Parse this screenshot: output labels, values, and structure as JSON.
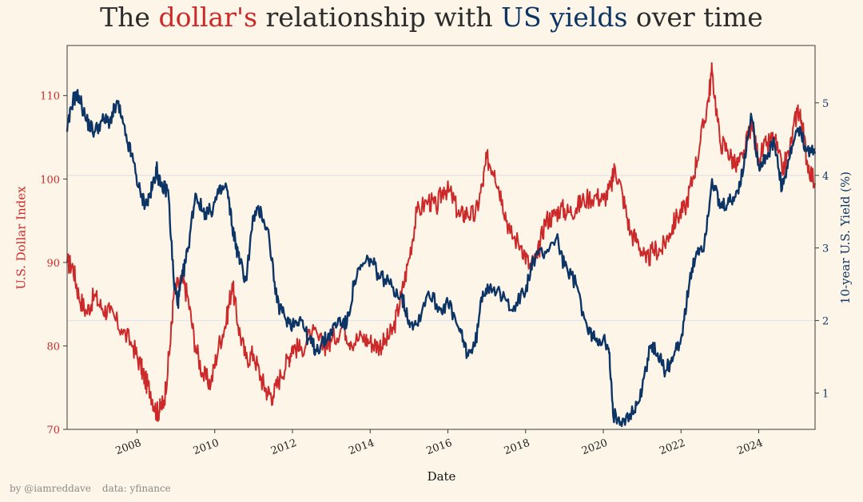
{
  "title": {
    "part1": "The ",
    "highlight1": "dollar's",
    "part2": " relationship with ",
    "highlight2": "US yields",
    "part3": " over time"
  },
  "credit": {
    "author": "by @iamreddave",
    "source": "data: yfinance"
  },
  "colors": {
    "background": "#fdf5e8",
    "dollar": "#cc2a2a",
    "yield": "#0c3566",
    "grid": "#dce0ea"
  },
  "chart_data": {
    "type": "line",
    "xlabel": "Date",
    "ylabel_left": "U.S. Dollar Index",
    "ylabel_right": "10-year U.S. Yield (%)",
    "xlim": [
      2006.2,
      2025.45
    ],
    "ylim_left": [
      70,
      116
    ],
    "ylim_right": [
      0.5,
      5.79
    ],
    "x_ticks": [
      2008,
      2010,
      2012,
      2014,
      2016,
      2018,
      2020,
      2022,
      2024
    ],
    "y_ticks_left": [
      70,
      80,
      90,
      100,
      110
    ],
    "y_ticks_right": [
      1,
      2,
      3,
      4,
      5
    ],
    "grid": "horizontal lines at right-axis ticks 2 and 4",
    "series": [
      {
        "name": "U.S. Dollar Index",
        "axis": "left",
        "x": [
          2006.2,
          2006.35,
          2006.5,
          2006.7,
          2006.9,
          2007.1,
          2007.3,
          2007.6,
          2007.9,
          2008.1,
          2008.2,
          2008.35,
          2008.5,
          2008.6,
          2008.7,
          2008.85,
          2008.95,
          2009.15,
          2009.3,
          2009.5,
          2009.7,
          2009.9,
          2010.1,
          2010.3,
          2010.45,
          2010.6,
          2010.8,
          2011.0,
          2011.2,
          2011.35,
          2011.5,
          2011.7,
          2011.9,
          2012.0,
          2012.2,
          2012.5,
          2012.8,
          2013.0,
          2013.3,
          2013.5,
          2013.8,
          2014.0,
          2014.2,
          2014.4,
          2014.6,
          2014.8,
          2015.0,
          2015.2,
          2015.5,
          2015.7,
          2015.9,
          2016.1,
          2016.3,
          2016.5,
          2016.7,
          2016.9,
          2017.0,
          2017.2,
          2017.4,
          2017.6,
          2017.9,
          2018.1,
          2018.3,
          2018.5,
          2018.7,
          2018.9,
          2019.1,
          2019.3,
          2019.5,
          2019.8,
          2020.0,
          2020.2,
          2020.3,
          2020.5,
          2020.7,
          2020.9,
          2021.1,
          2021.3,
          2021.5,
          2021.7,
          2021.9,
          2022.1,
          2022.3,
          2022.5,
          2022.7,
          2022.8,
          2023.0,
          2023.2,
          2023.4,
          2023.6,
          2023.8,
          2024.0,
          2024.2,
          2024.4,
          2024.6,
          2024.8,
          2025.0,
          2025.1,
          2025.25,
          2025.45
        ],
        "values": [
          90.0,
          89.5,
          86.0,
          84.0,
          86.0,
          84.5,
          84.0,
          82.0,
          80.0,
          77.5,
          76.0,
          74.5,
          72.0,
          72.5,
          73.5,
          80.0,
          86.5,
          88.0,
          86.0,
          80.0,
          76.5,
          75.5,
          80.0,
          83.0,
          87.5,
          82.5,
          78.5,
          79.0,
          76.0,
          74.5,
          74.0,
          76.5,
          78.5,
          80.0,
          79.5,
          81.5,
          80.0,
          80.5,
          82.5,
          80.5,
          81.0,
          80.5,
          80.0,
          80.5,
          82.0,
          86.0,
          90.5,
          96.0,
          97.5,
          96.5,
          99.0,
          98.0,
          95.5,
          96.0,
          95.5,
          99.5,
          102.5,
          101.0,
          97.5,
          93.5,
          92.0,
          89.5,
          90.5,
          95.0,
          95.5,
          96.5,
          96.0,
          96.5,
          97.5,
          98.0,
          97.5,
          99.0,
          101.5,
          98.0,
          93.5,
          92.5,
          90.0,
          91.5,
          91.5,
          93.5,
          95.5,
          96.5,
          100.0,
          104.5,
          109.5,
          113.0,
          104.5,
          103.5,
          101.5,
          102.5,
          106.5,
          102.5,
          104.0,
          105.0,
          101.0,
          103.5,
          108.5,
          107.0,
          102.0,
          99.5
        ]
      },
      {
        "name": "10-year U.S. Yield (%)",
        "axis": "right",
        "x": [
          2006.2,
          2006.35,
          2006.5,
          2006.7,
          2006.9,
          2007.1,
          2007.3,
          2007.5,
          2007.7,
          2007.9,
          2008.1,
          2008.25,
          2008.4,
          2008.5,
          2008.6,
          2008.8,
          2008.95,
          2009.05,
          2009.15,
          2009.3,
          2009.5,
          2009.7,
          2009.9,
          2010.1,
          2010.3,
          2010.45,
          2010.6,
          2010.8,
          2011.0,
          2011.2,
          2011.4,
          2011.6,
          2011.8,
          2012.0,
          2012.2,
          2012.4,
          2012.6,
          2012.8,
          2013.0,
          2013.2,
          2013.4,
          2013.6,
          2013.8,
          2014.0,
          2014.2,
          2014.5,
          2014.8,
          2015.0,
          2015.2,
          2015.5,
          2015.8,
          2016.0,
          2016.3,
          2016.5,
          2016.7,
          2016.9,
          2017.1,
          2017.4,
          2017.7,
          2018.0,
          2018.2,
          2018.5,
          2018.8,
          2019.0,
          2019.3,
          2019.6,
          2019.8,
          2020.0,
          2020.15,
          2020.25,
          2020.5,
          2020.8,
          2021.0,
          2021.2,
          2021.4,
          2021.6,
          2021.8,
          2022.0,
          2022.2,
          2022.4,
          2022.6,
          2022.8,
          2023.0,
          2023.2,
          2023.4,
          2023.6,
          2023.8,
          2024.0,
          2024.2,
          2024.4,
          2024.6,
          2024.8,
          2025.0,
          2025.2,
          2025.45
        ],
        "values": [
          4.6,
          5.05,
          5.1,
          4.75,
          4.6,
          4.75,
          4.75,
          5.0,
          4.55,
          4.2,
          3.7,
          3.6,
          3.85,
          4.1,
          3.85,
          3.8,
          2.5,
          2.25,
          2.55,
          2.95,
          3.75,
          3.5,
          3.5,
          3.75,
          3.85,
          3.3,
          2.9,
          2.55,
          3.45,
          3.5,
          3.15,
          2.25,
          2.05,
          1.95,
          2.05,
          1.75,
          1.6,
          1.7,
          1.85,
          2.0,
          1.95,
          2.55,
          2.75,
          2.85,
          2.65,
          2.5,
          2.35,
          2.0,
          1.95,
          2.4,
          2.15,
          2.25,
          1.85,
          1.55,
          1.65,
          2.4,
          2.5,
          2.3,
          2.2,
          2.4,
          2.85,
          2.95,
          3.15,
          2.75,
          2.5,
          1.85,
          1.75,
          1.75,
          1.55,
          0.7,
          0.65,
          0.75,
          1.05,
          1.65,
          1.55,
          1.3,
          1.5,
          1.75,
          2.45,
          2.95,
          3.05,
          3.95,
          3.55,
          3.6,
          3.7,
          4.05,
          4.85,
          4.15,
          4.25,
          4.45,
          3.8,
          4.25,
          4.65,
          4.4,
          4.3
        ]
      }
    ]
  }
}
